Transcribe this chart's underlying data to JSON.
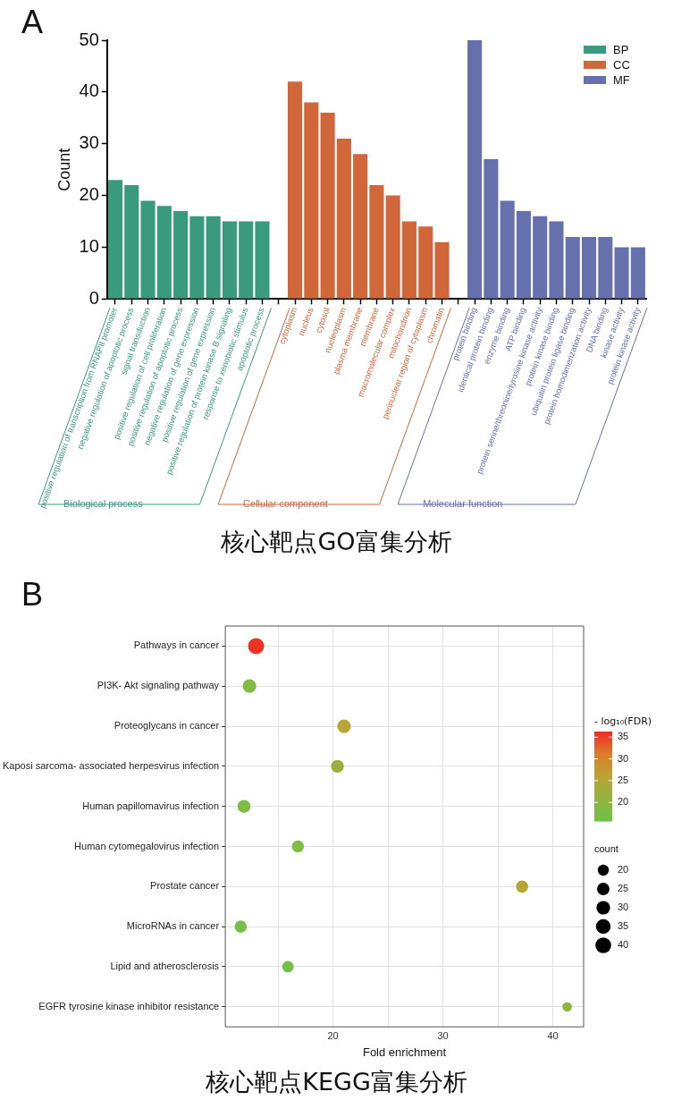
{
  "chart_data": [
    {
      "type": "bar",
      "title": "核心靶点GO富集分析",
      "annotations": [
        "A",
        "Biological process",
        "Cellular component",
        "Molecular function"
      ],
      "ylabel": "Count",
      "ylim": [
        0,
        50
      ],
      "yticks": [
        0,
        10,
        20,
        30,
        40,
        50
      ],
      "legend": "top right",
      "categories": [
        "positive regulation of transcription from RNAPII promoter",
        "negative regulation of apoptotic process",
        "signal transduction",
        "positive regulation of cell proliferation",
        "positive regulation of apoptotic process",
        "negative regulation of gene expression",
        "positive regulation of gene expression",
        "positive regulation of protein kinase B signaling",
        "response to xenobiotic stimulus",
        "apoptotic process",
        null,
        "cytoplasm",
        "nucleus",
        "cytosol",
        "nucleoplasm",
        "plasma membrane",
        "membrane",
        "macromolecular complex",
        "mitochondrion",
        "perinuclear region of cytoplasm",
        "chromatin",
        null,
        "protein binding",
        "identical protein binding",
        "enzyme binding",
        "ATP binding",
        "protein serine/threonine/tyrosine kinase activity",
        "protein kinase binding",
        "ubiquitin protein ligase binding",
        "protein homodimerization activity",
        "DNA binding",
        "kinase activity",
        "protein kinase activity"
      ],
      "series": [
        {
          "name": "BP",
          "color": "#3a9a7c",
          "values": [
            23,
            22,
            19,
            18,
            17,
            16,
            16,
            15,
            15,
            15,
            null,
            null,
            null,
            null,
            null,
            null,
            null,
            null,
            null,
            null,
            null,
            null,
            null,
            null,
            null,
            null,
            null,
            null,
            null,
            null,
            null,
            null,
            null
          ]
        },
        {
          "name": "CC",
          "color": "#d0663a",
          "values": [
            null,
            null,
            null,
            null,
            null,
            null,
            null,
            null,
            null,
            null,
            null,
            42,
            38,
            36,
            31,
            28,
            22,
            20,
            15,
            14,
            11,
            null,
            null,
            null,
            null,
            null,
            null,
            null,
            null,
            null,
            null,
            null,
            null
          ]
        },
        {
          "name": "MF",
          "color": "#6670ad",
          "values": [
            null,
            null,
            null,
            null,
            null,
            null,
            null,
            null,
            null,
            null,
            null,
            null,
            null,
            null,
            null,
            null,
            null,
            null,
            null,
            null,
            null,
            null,
            50,
            27,
            19,
            17,
            16,
            15,
            12,
            12,
            12,
            10,
            10
          ]
        }
      ]
    },
    {
      "type": "bubble",
      "orientation": "horizontal",
      "title": "核心靶点KEGG富集分析",
      "annotations": [
        "B"
      ],
      "categories": [
        "Pathways in cancer",
        "PI3K- Akt signaling pathway",
        "Proteoglycans in cancer",
        "Kaposi sarcoma- associated herpesvirus infection",
        "Human papillomavirus infection",
        "Human cytomegalovirus infection",
        "Prostate cancer",
        "MicroRNAs in cancer",
        "Lipid and atherosclerosis",
        "EGFR tyrosine kinase inhibitor resistance"
      ],
      "values": [
        13.0,
        12.4,
        21.0,
        20.4,
        11.9,
        16.8,
        37.2,
        11.6,
        15.9,
        41.3
      ],
      "sizes": [
        42,
        30,
        30,
        27,
        27,
        24,
        24,
        24,
        21,
        15
      ],
      "cvalues": [
        36,
        19,
        26,
        22,
        18,
        18,
        26,
        17,
        17,
        21
      ],
      "xlabel": "Fold enrichment",
      "xlim": [
        10.2,
        42.8
      ],
      "xticks": [
        {
          "value": 15,
          "label": null
        },
        20,
        {
          "value": 25,
          "label": null
        },
        30,
        {
          "value": 35,
          "label": null
        },
        40
      ],
      "clabel": "- log₁₀(FDR)",
      "clim": [
        15.7,
        36.3
      ],
      "cticks": [
        20,
        25,
        30,
        35
      ],
      "legend_title": "count",
      "size_legend": [
        20,
        25,
        30,
        35,
        40
      ],
      "grid": true
    }
  ]
}
